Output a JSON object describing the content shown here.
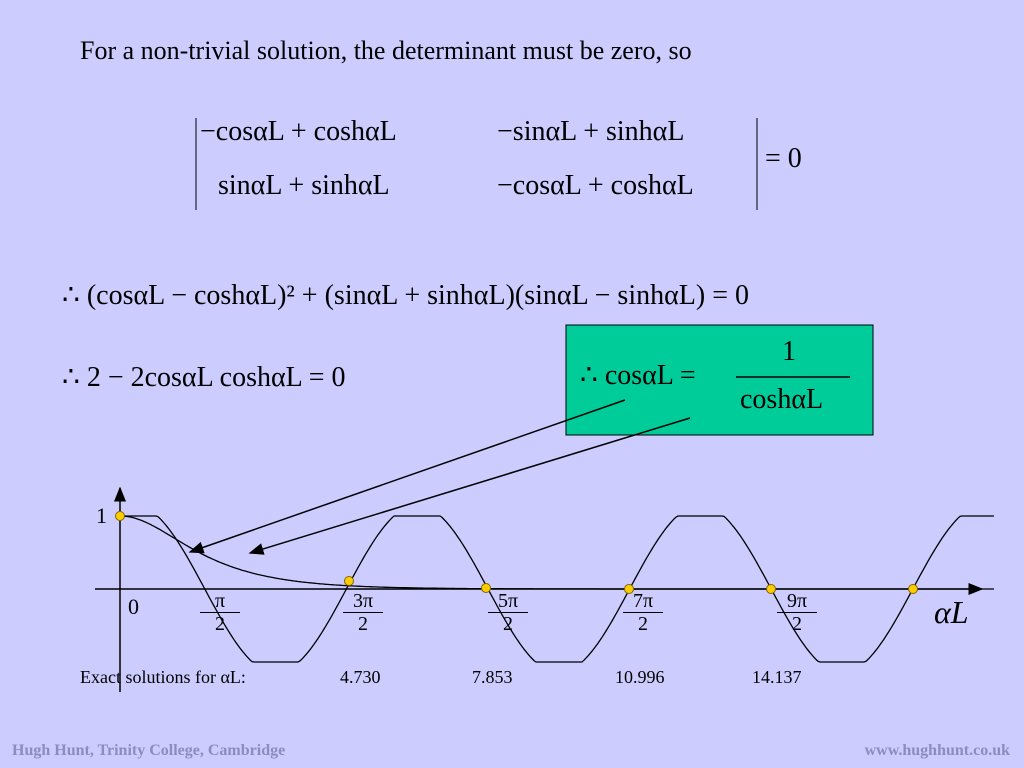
{
  "intro": "For a non-trivial solution, the determinant must be zero, so",
  "determinant": {
    "rows": [
      [
        "−cosαL + coshαL",
        "−sinαL + sinhαL"
      ],
      [
        "sinαL + sinhαL",
        "−cosαL + coshαL"
      ]
    ],
    "equals": "= 0"
  },
  "expansion": "∴ (cosαL − coshαL)² + (sinαL + sinhαL)(sinαL − sinhαL) = 0",
  "simplified": "∴ 2 − 2cosαL coshαL = 0",
  "result": {
    "lhs": "∴ cosαL =",
    "numerator": "1",
    "denominator": "coshαL"
  },
  "plot": {
    "y_label": "1",
    "origin_label": "0",
    "x_axis_label": "αL",
    "ticks": [
      {
        "num": "π",
        "den": "2"
      },
      {
        "num": "3π",
        "den": "2"
      },
      {
        "num": "5π",
        "den": "2"
      },
      {
        "num": "7π",
        "den": "2"
      },
      {
        "num": "9π",
        "den": "2"
      }
    ]
  },
  "solutions": {
    "label": "Exact solutions for αL:",
    "values": [
      "4.730",
      "7.853",
      "10.996",
      "14.137"
    ]
  },
  "footer": {
    "left": "Hugh Hunt, Trinity College, Cambridge",
    "right": "www.hughhunt.co.uk"
  }
}
